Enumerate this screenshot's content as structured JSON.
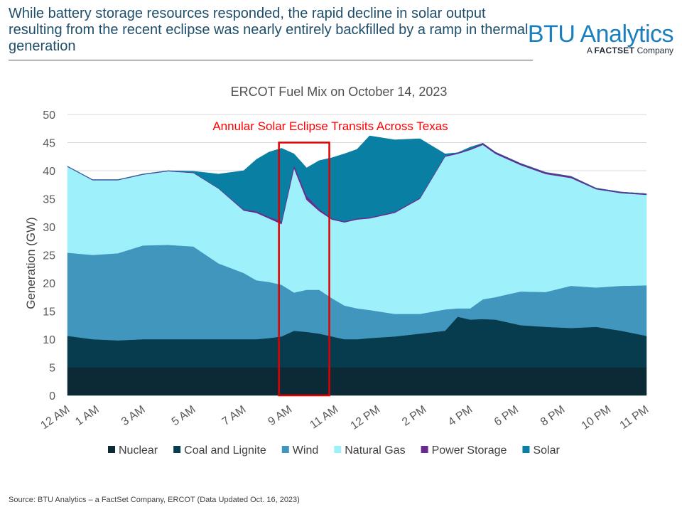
{
  "headline": "While battery storage resources responded, the rapid decline in solar output resulting from the recent eclipse was nearly entirely backfilled by a ramp in thermal generation",
  "logo": {
    "main": "BTU Analytics",
    "sub_prefix": "A ",
    "sub_brand": "FACTSET",
    "sub_suffix": " Company"
  },
  "source": "Source: BTU Analytics – a FactSet Company, ERCOT (Data Updated Oct. 16, 2023)",
  "chart_data": {
    "type": "area",
    "stacked": true,
    "title": "ERCOT Fuel Mix on October 14, 2023",
    "xlabel": "",
    "ylabel": "Generation (GW)",
    "ylim": [
      0,
      50
    ],
    "yticks": [
      0,
      5,
      10,
      15,
      20,
      25,
      30,
      35,
      40,
      45,
      50
    ],
    "xlim": [
      0,
      23
    ],
    "x_tick_labels": [
      "12 AM",
      "1 AM",
      "3 AM",
      "5 AM",
      "7 AM",
      "9 AM",
      "11 AM",
      "12 PM",
      "2 PM",
      "4 PM",
      "6 PM",
      "8 PM",
      "10 PM",
      "11 PM"
    ],
    "x_tick_hours": [
      0,
      1.17,
      3,
      5,
      7,
      8.83,
      10.67,
      12.33,
      14.17,
      16,
      17.83,
      19.67,
      21.5,
      23
    ],
    "grid": true,
    "legend": "bottom",
    "x_hours": [
      0,
      1,
      2,
      3,
      4,
      5,
      6,
      7,
      7.5,
      8,
      8.5,
      9,
      9.5,
      10,
      10.5,
      11,
      11.5,
      12,
      13,
      14,
      15,
      15.5,
      16,
      16.5,
      17,
      17.5,
      18,
      19,
      20,
      21,
      22,
      23
    ],
    "series": [
      {
        "name": "Nuclear",
        "color": "#0b2a35",
        "values": [
          5,
          5,
          5,
          5,
          5,
          5,
          5,
          5,
          5,
          5,
          5,
          5,
          5,
          5,
          5,
          5,
          5,
          5,
          5,
          5,
          5,
          5,
          5,
          5,
          5,
          5,
          5,
          5,
          5,
          5,
          5,
          5
        ]
      },
      {
        "name": "Coal and Lignite",
        "color": "#073c4e",
        "values": [
          5.6,
          5,
          4.8,
          5,
          5,
          5,
          5,
          5,
          5,
          5.2,
          5.5,
          6.5,
          6.3,
          6,
          5.5,
          5,
          5,
          5.2,
          5.5,
          6,
          6.5,
          9,
          8.5,
          8.6,
          8.5,
          8,
          7.5,
          7.2,
          7,
          7.2,
          6.5,
          5.6
        ]
      },
      {
        "name": "Wind",
        "color": "#4196be",
        "values": [
          14.8,
          15,
          15.5,
          16.7,
          16.8,
          16.5,
          13.5,
          11.8,
          10.5,
          10,
          9.2,
          6.8,
          7.5,
          7.8,
          6.8,
          6,
          5.5,
          5,
          4,
          3.5,
          3.8,
          1.5,
          2,
          3.5,
          4,
          5,
          6,
          6.2,
          7.5,
          7,
          8,
          9
        ]
      },
      {
        "name": "Natural Gas",
        "color": "#9ef0fb",
        "values": [
          15.3,
          13.3,
          13,
          12.6,
          13.1,
          13.1,
          13.3,
          11.1,
          12,
          11.3,
          10.8,
          22.1,
          16,
          14,
          14,
          14.8,
          15.8,
          16.3,
          18,
          20.5,
          27.2,
          27.5,
          28.2,
          27.5,
          25.5,
          24,
          22.5,
          21,
          19.2,
          17.5,
          16.5,
          16.1
        ]
      },
      {
        "name": "Power Storage",
        "color": "#6a2b91",
        "values": [
          0.1,
          0.1,
          0.1,
          0.1,
          0.1,
          0.1,
          0.1,
          0.2,
          0.3,
          0.3,
          0.5,
          0.6,
          0.7,
          0.4,
          0.2,
          0.2,
          0.2,
          0.2,
          0.2,
          0.2,
          0.2,
          0.2,
          0.2,
          0.3,
          0.3,
          0.3,
          0.3,
          0.3,
          0.3,
          0.2,
          0.2,
          0.2
        ]
      },
      {
        "name": "Solar",
        "color": "#0a7fa4",
        "values": [
          0,
          0,
          0,
          0,
          0,
          0.2,
          2.5,
          6.9,
          9.2,
          11.5,
          13,
          2,
          5,
          8.6,
          10.8,
          12,
          12.3,
          14.5,
          12.8,
          10.5,
          0.3,
          0,
          0.3,
          0,
          0,
          0,
          0,
          0,
          0,
          0,
          0,
          0
        ]
      }
    ],
    "annotations": [
      {
        "text": "Annular Solar Eclipse Transits Across Texas",
        "color": "#ff0000",
        "x_range_hours": [
          8.4,
          10.4
        ],
        "y_range": [
          0,
          45
        ]
      }
    ]
  }
}
